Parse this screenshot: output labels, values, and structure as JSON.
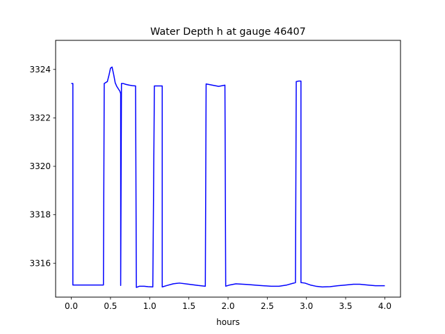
{
  "chart_data": {
    "type": "line",
    "title": "Water Depth h at gauge 46407",
    "xlabel": "hours",
    "ylabel": "",
    "xlim": [
      -0.2,
      4.2
    ],
    "ylim": [
      3314.6,
      3325.2
    ],
    "xticks": [
      0.0,
      0.5,
      1.0,
      1.5,
      2.0,
      2.5,
      3.0,
      3.5,
      4.0
    ],
    "xtick_labels": [
      "0.0",
      "0.5",
      "1.0",
      "1.5",
      "2.0",
      "2.5",
      "3.0",
      "3.5",
      "4.0"
    ],
    "yticks": [
      3316,
      3318,
      3320,
      3322,
      3324
    ],
    "ytick_labels": [
      "3316",
      "3318",
      "3320",
      "3322",
      "3324"
    ],
    "grid": false,
    "series": [
      {
        "color": "#0000ff",
        "x": [
          0.0,
          0.02,
          0.02,
          0.41,
          0.42,
          0.46,
          0.48,
          0.5,
          0.52,
          0.54,
          0.56,
          0.58,
          0.6,
          0.62,
          0.63,
          0.63,
          0.64,
          0.66,
          0.7,
          0.74,
          0.78,
          0.82,
          0.83,
          0.83,
          0.87,
          0.93,
          0.98,
          1.04,
          1.06,
          1.06,
          1.15,
          1.16,
          1.16,
          1.22,
          1.3,
          1.38,
          1.5,
          1.62,
          1.71,
          1.72,
          1.72,
          1.8,
          1.88,
          1.96,
          1.97,
          1.97,
          2.02,
          2.1,
          2.25,
          2.4,
          2.55,
          2.65,
          2.75,
          2.86,
          2.87,
          2.87,
          2.9,
          2.93,
          2.93,
          2.98,
          3.05,
          3.12,
          3.2,
          3.3,
          3.4,
          3.5,
          3.6,
          3.68,
          3.78,
          3.88,
          4.0
        ],
        "y": [
          3323.42,
          3323.42,
          3315.1,
          3315.1,
          3323.42,
          3323.5,
          3323.75,
          3324.05,
          3324.1,
          3323.8,
          3323.45,
          3323.3,
          3323.2,
          3323.1,
          3323.0,
          3315.08,
          3323.42,
          3323.42,
          3323.38,
          3323.35,
          3323.33,
          3323.32,
          3315.0,
          3315.0,
          3315.05,
          3315.05,
          3315.03,
          3315.02,
          3323.32,
          3323.32,
          3323.32,
          3323.32,
          3315.02,
          3315.08,
          3315.15,
          3315.18,
          3315.13,
          3315.08,
          3315.05,
          3323.4,
          3323.4,
          3323.35,
          3323.3,
          3323.35,
          3315.05,
          3315.05,
          3315.1,
          3315.15,
          3315.12,
          3315.08,
          3315.05,
          3315.05,
          3315.1,
          3315.2,
          3323.5,
          3323.5,
          3323.52,
          3323.52,
          3315.2,
          3315.18,
          3315.1,
          3315.05,
          3315.02,
          3315.03,
          3315.07,
          3315.1,
          3315.13,
          3315.13,
          3315.1,
          3315.07,
          3315.07
        ]
      }
    ]
  }
}
